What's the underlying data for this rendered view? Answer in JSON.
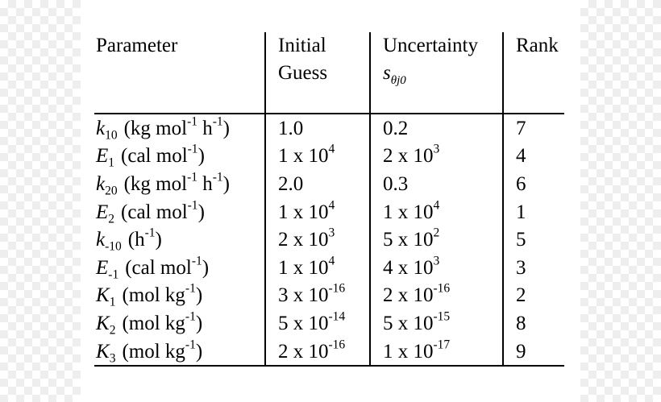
{
  "table": {
    "headers": {
      "parameter": "Parameter",
      "initial_guess_line1": "Initial",
      "initial_guess_line2": "Guess",
      "uncertainty_line1": "Uncertainty",
      "uncertainty_symbol": "s",
      "uncertainty_symbol_sub": "θj0",
      "rank": "Rank"
    },
    "rows": [
      {
        "sym": "k",
        "sym_sub": "10",
        "unit_pre": "(kg mol",
        "unit_sup1": "-1",
        "unit_mid": " h",
        "unit_sup2": "-1",
        "unit_post": ")",
        "guess_base": "1.0",
        "guess_exp": "",
        "unc_base": "0.2",
        "unc_exp": "",
        "rank": "7"
      },
      {
        "sym": "E",
        "sym_sub": "1",
        "unit_pre": "(cal mol",
        "unit_sup1": "-1",
        "unit_mid": "",
        "unit_sup2": "",
        "unit_post": ")",
        "guess_base": "1 x 10",
        "guess_exp": "4",
        "unc_base": "2 x 10",
        "unc_exp": "3",
        "rank": "4"
      },
      {
        "sym": "k",
        "sym_sub": "20",
        "unit_pre": "(kg mol",
        "unit_sup1": "-1",
        "unit_mid": " h",
        "unit_sup2": "-1",
        "unit_post": ")",
        "guess_base": "2.0",
        "guess_exp": "",
        "unc_base": "0.3",
        "unc_exp": "",
        "rank": "6"
      },
      {
        "sym": "E",
        "sym_sub": "2",
        "unit_pre": "(cal mol",
        "unit_sup1": "-1",
        "unit_mid": "",
        "unit_sup2": "",
        "unit_post": ")",
        "guess_base": "1 x 10",
        "guess_exp": "4",
        "unc_base": "1 x 10",
        "unc_exp": "4",
        "rank": "1"
      },
      {
        "sym": "k",
        "sym_sub": "-10",
        "unit_pre": "(h",
        "unit_sup1": "-1",
        "unit_mid": "",
        "unit_sup2": "",
        "unit_post": ")",
        "guess_base": "2 x 10",
        "guess_exp": "3",
        "unc_base": "5 x 10",
        "unc_exp": "2",
        "rank": "5"
      },
      {
        "sym": "E",
        "sym_sub": "-1",
        "unit_pre": "(cal mol",
        "unit_sup1": "-1",
        "unit_mid": "",
        "unit_sup2": "",
        "unit_post": ")",
        "guess_base": "1 x 10",
        "guess_exp": "4",
        "unc_base": "4 x 10",
        "unc_exp": "3",
        "rank": "3"
      },
      {
        "sym": "K",
        "sym_sub": "1",
        "unit_pre": "(mol kg",
        "unit_sup1": "-1",
        "unit_mid": "",
        "unit_sup2": "",
        "unit_post": ")",
        "guess_base": "3 x 10",
        "guess_exp": "-16",
        "unc_base": "2 x 10",
        "unc_exp": "-16",
        "rank": "2"
      },
      {
        "sym": "K",
        "sym_sub": "2",
        "unit_pre": "(mol kg",
        "unit_sup1": "-1",
        "unit_mid": "",
        "unit_sup2": "",
        "unit_post": ")",
        "guess_base": "5 x 10",
        "guess_exp": "-14",
        "unc_base": "5 x 10",
        "unc_exp": "-15",
        "rank": "8"
      },
      {
        "sym": "K",
        "sym_sub": "3",
        "unit_pre": "(mol kg",
        "unit_sup1": "-1",
        "unit_mid": "",
        "unit_sup2": "",
        "unit_post": ")",
        "guess_base": "2 x 10",
        "guess_exp": "-16",
        "unc_base": "1 x 10",
        "unc_exp": "-17",
        "rank": "9"
      }
    ]
  }
}
